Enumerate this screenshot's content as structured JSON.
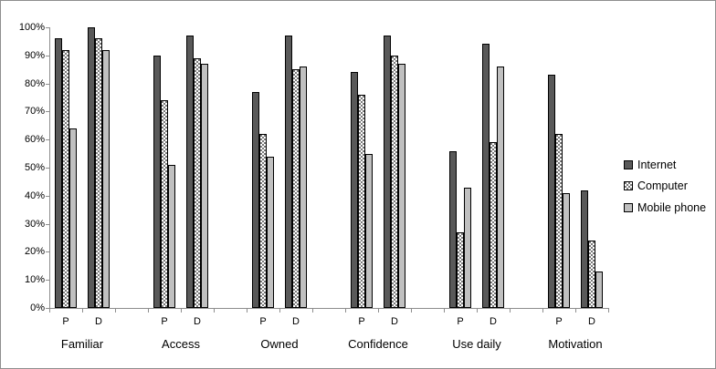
{
  "chart_data": {
    "type": "bar",
    "title": "",
    "xlabel": "",
    "ylabel": "",
    "categories": [
      "Familiar",
      "Access",
      "Owned",
      "Confidence",
      "Use daily",
      "Motivation"
    ],
    "subgroups": [
      "P",
      "D"
    ],
    "series": [
      {
        "name": "Internet",
        "fill": "solid",
        "color": "#595959",
        "values": [
          96,
          100,
          90,
          97,
          77,
          97,
          84,
          97,
          56,
          94,
          83,
          42
        ]
      },
      {
        "name": "Computer",
        "fill": "dotted",
        "color": "#FFFFFF",
        "dot_color": "#000000",
        "values": [
          92,
          96,
          74,
          89,
          62,
          85,
          76,
          90,
          27,
          59,
          62,
          24
        ]
      },
      {
        "name": "Mobile phone",
        "fill": "solid",
        "color": "#C0C0C0",
        "values": [
          64,
          92,
          51,
          87,
          54,
          86,
          55,
          87,
          43,
          86,
          41,
          13
        ]
      }
    ],
    "values_order": "category-major: [cat0-P, cat0-D, cat1-P, cat1-D, ...] in percent",
    "ylim": [
      0,
      100
    ],
    "y_tick_labels": [
      "0%",
      "10%",
      "20%",
      "30%",
      "40%",
      "50%",
      "60%",
      "70%",
      "80%",
      "90%",
      "100%"
    ],
    "grid": false,
    "legend_position": "right",
    "colors": {
      "bar_border": "#000000",
      "axis": "#8e8e8e",
      "text": "#000000",
      "frame_border": "#8e8e8e",
      "background": "#ffffff"
    }
  }
}
